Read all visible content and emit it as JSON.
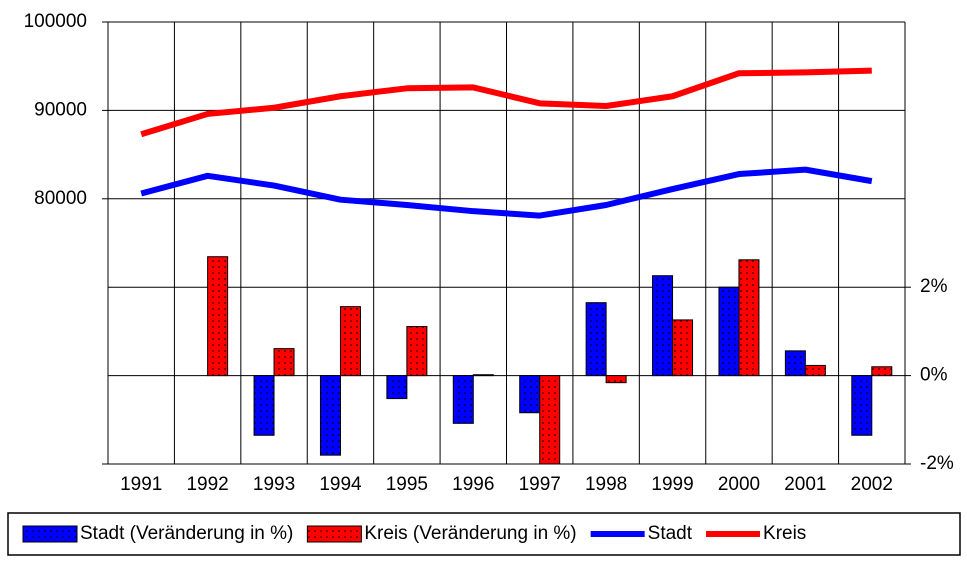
{
  "chart_data": {
    "type": "combo",
    "categories": [
      "1991",
      "1992",
      "1993",
      "1994",
      "1995",
      "1996",
      "1997",
      "1998",
      "1999",
      "2000",
      "2001",
      "2002"
    ],
    "ylim": [
      50000,
      100000
    ],
    "yticks": [
      80000,
      90000,
      100000
    ],
    "y2lim": [
      -2,
      8
    ],
    "y2ticks": [
      {
        "value": -2,
        "label": "-2%"
      },
      {
        "value": 0,
        "label": "0%"
      },
      {
        "value": 2,
        "label": "2%"
      }
    ],
    "grid": true,
    "legend": "bottom",
    "series": [
      {
        "name": "Stadt (Veränderung in %)",
        "type": "bar",
        "axis": "y2",
        "color": "#0000ff",
        "values": [
          null,
          null,
          -1.35,
          -1.8,
          -0.52,
          -1.08,
          -0.84,
          1.65,
          2.26,
          2.0,
          0.56,
          -1.35
        ]
      },
      {
        "name": "Kreis (Veränderung in %)",
        "type": "bar",
        "axis": "y2",
        "color": "#ff0000",
        "values": [
          null,
          2.69,
          0.61,
          1.56,
          1.11,
          0.02,
          -2.0,
          -0.16,
          1.26,
          2.62,
          0.23,
          0.2
        ]
      },
      {
        "name": "Stadt",
        "type": "line",
        "color": "#0000ff",
        "values": [
          80600,
          82600,
          81500,
          79900,
          79300,
          78600,
          78100,
          79300,
          81100,
          82800,
          83300,
          82000
        ]
      },
      {
        "name": "Kreis",
        "type": "line",
        "color": "#ff0000",
        "values": [
          87300,
          89600,
          90300,
          91600,
          92500,
          92600,
          90800,
          90500,
          91600,
          94200,
          94300,
          94500
        ]
      }
    ]
  }
}
